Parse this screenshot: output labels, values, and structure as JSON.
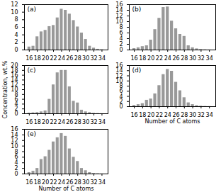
{
  "chart_data": [
    {
      "type": "bar",
      "title": "(a)",
      "x": [
        16,
        17,
        18,
        19,
        20,
        21,
        22,
        23,
        24,
        25,
        26,
        27,
        28,
        29,
        30,
        31,
        32,
        33,
        34
      ],
      "values": [
        0.8,
        1.0,
        3.5,
        4.8,
        5.2,
        6.2,
        6.5,
        8.5,
        10.8,
        10.5,
        9.5,
        7.8,
        6.1,
        4.5,
        2.8,
        1.0,
        0.5,
        0.2,
        0.1
      ],
      "color": "#999999",
      "xlim": [
        14.8,
        35.5
      ],
      "xticks": [
        16,
        18,
        20,
        22,
        24,
        26,
        28,
        30,
        32,
        34
      ],
      "ylim": [
        0,
        12
      ],
      "yticks": [
        0,
        2,
        4,
        6,
        8,
        10,
        12
      ],
      "grid": false
    },
    {
      "type": "bar",
      "title": "(b)",
      "x": [
        16,
        17,
        18,
        19,
        20,
        21,
        22,
        23,
        24,
        25,
        26,
        27,
        28,
        29,
        30,
        31,
        32,
        33,
        34
      ],
      "values": [
        0.5,
        0.8,
        1.2,
        1.5,
        3.5,
        7.2,
        11.2,
        15.0,
        15.2,
        10.2,
        7.5,
        5.5,
        4.8,
        1.5,
        0.8,
        0.4,
        0.2,
        0.1,
        0.05
      ],
      "color": "#999999",
      "xlim": [
        14.8,
        35.5
      ],
      "xticks": [
        16,
        18,
        20,
        22,
        24,
        26,
        28,
        30,
        32,
        34
      ],
      "ylim": [
        0,
        16
      ],
      "yticks": [
        0,
        2,
        4,
        6,
        8,
        10,
        12,
        14,
        16
      ],
      "grid": false
    },
    {
      "type": "bar",
      "title": "(c)",
      "ylabel": "Concentration, wt.%",
      "x": [
        16,
        17,
        18,
        19,
        20,
        21,
        22,
        23,
        24,
        25,
        26,
        27,
        28,
        29,
        30,
        31,
        32,
        33,
        34
      ],
      "values": [
        0.3,
        0.4,
        0.5,
        0.8,
        1.2,
        6.0,
        12.0,
        17.0,
        18.0,
        18.0,
        11.2,
        5.2,
        4.5,
        1.5,
        0.8,
        0.5,
        0.2,
        0.1,
        0.05
      ],
      "color": "#999999",
      "xlim": [
        14.8,
        35.5
      ],
      "xticks": [
        16,
        18,
        20,
        22,
        24,
        26,
        28,
        30,
        32,
        34
      ],
      "ylim": [
        0,
        20
      ],
      "yticks": [
        0,
        2,
        4,
        6,
        8,
        10,
        12,
        14,
        16,
        18,
        20
      ],
      "grid": false
    },
    {
      "type": "bar",
      "title": "(d)",
      "xlabel": "Number of C atoms",
      "x": [
        16,
        17,
        18,
        19,
        20,
        21,
        22,
        23,
        24,
        25,
        26,
        27,
        28,
        29,
        30,
        31,
        32,
        33,
        34
      ],
      "values": [
        0.5,
        0.8,
        1.2,
        2.5,
        3.0,
        5.0,
        8.2,
        12.5,
        14.5,
        13.8,
        9.5,
        6.2,
        3.5,
        1.5,
        0.8,
        0.4,
        0.2,
        0.1,
        0.05
      ],
      "color": "#999999",
      "xlim": [
        14.8,
        35.5
      ],
      "xticks": [
        16,
        18,
        20,
        22,
        24,
        26,
        28,
        30,
        32,
        34
      ],
      "ylim": [
        0,
        16
      ],
      "yticks": [
        0,
        2,
        4,
        6,
        8,
        10,
        12,
        14,
        16
      ],
      "grid": false
    },
    {
      "type": "bar",
      "title": "(e)",
      "xlabel": "Number of C atoms",
      "x": [
        16,
        17,
        18,
        19,
        20,
        21,
        22,
        23,
        24,
        25,
        26,
        27,
        28,
        29,
        30,
        31,
        32,
        33,
        34
      ],
      "values": [
        0.5,
        1.0,
        2.0,
        5.2,
        6.2,
        8.5,
        11.5,
        13.0,
        14.5,
        13.5,
        9.0,
        6.0,
        4.5,
        2.0,
        1.2,
        0.5,
        0.2,
        0.1,
        0.05
      ],
      "color": "#999999",
      "xlim": [
        14.8,
        35.5
      ],
      "xticks": [
        16,
        18,
        20,
        22,
        24,
        26,
        28,
        30,
        32,
        34
      ],
      "ylim": [
        0,
        16
      ],
      "yticks": [
        0,
        2,
        4,
        6,
        8,
        10,
        12,
        14,
        16
      ],
      "grid": false
    }
  ]
}
